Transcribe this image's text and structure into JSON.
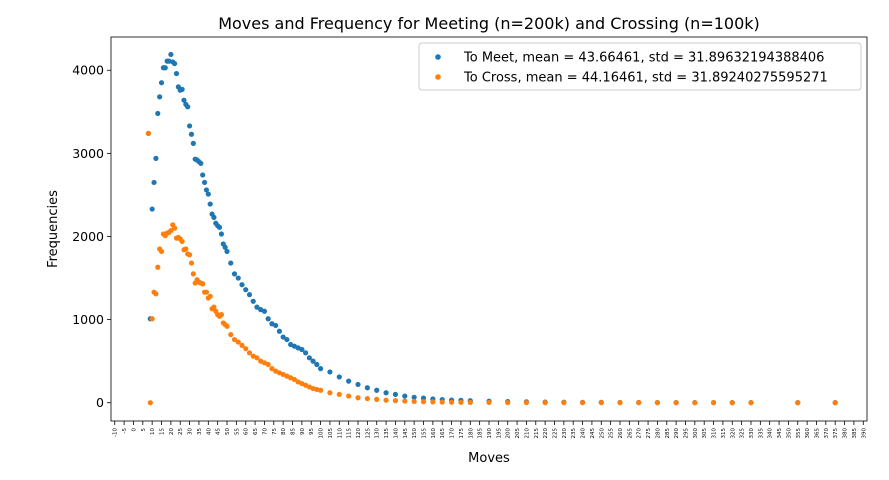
{
  "chart_data": {
    "type": "scatter",
    "title": "Moves and Frequency for Meeting (n=200k) and Crossing (n=100k)",
    "xlabel": "Moves",
    "ylabel": "Frequencies",
    "xlim": [
      -12,
      392
    ],
    "ylim": [
      -220,
      4400
    ],
    "xticks": [
      -10,
      -5,
      0,
      5,
      10,
      15,
      20,
      25,
      30,
      35,
      40,
      45,
      50,
      55,
      60,
      65,
      70,
      75,
      80,
      85,
      90,
      95,
      100,
      105,
      110,
      115,
      120,
      125,
      130,
      135,
      140,
      145,
      150,
      155,
      160,
      165,
      170,
      175,
      180,
      185,
      190,
      195,
      200,
      205,
      210,
      215,
      220,
      225,
      230,
      235,
      240,
      245,
      250,
      255,
      260,
      265,
      270,
      275,
      280,
      285,
      290,
      295,
      300,
      305,
      310,
      315,
      320,
      325,
      330,
      335,
      340,
      345,
      350,
      355,
      360,
      365,
      370,
      375,
      380,
      385,
      390
    ],
    "yticks": [
      0,
      1000,
      2000,
      3000,
      4000
    ],
    "grid": false,
    "legend_position": "top-right",
    "series": [
      {
        "name": "To Meet, mean = 43.66461, std = 31.89632194388406",
        "color": "#1f77b4",
        "x": [
          8,
          9,
          10,
          11,
          12,
          13,
          14,
          15,
          16,
          17,
          18,
          19,
          20,
          21,
          22,
          23,
          24,
          25,
          26,
          27,
          28,
          29,
          30,
          31,
          32,
          33,
          34,
          35,
          36,
          37,
          38,
          39,
          40,
          41,
          42,
          43,
          44,
          45,
          46,
          47,
          48,
          49,
          50,
          52,
          54,
          56,
          58,
          60,
          62,
          64,
          66,
          68,
          70,
          72,
          74,
          76,
          78,
          80,
          82,
          84,
          86,
          88,
          90,
          92,
          94,
          96,
          98,
          100,
          105,
          110,
          115,
          120,
          125,
          130,
          135,
          140,
          145,
          150,
          155,
          160,
          165,
          170,
          175,
          180,
          190,
          200,
          210,
          220,
          230,
          240,
          250,
          260,
          270,
          280,
          290,
          300,
          310,
          320,
          330,
          355,
          375
        ],
        "y": [
          3240,
          1010,
          2330,
          2650,
          2940,
          3480,
          3680,
          3850,
          4030,
          4030,
          4110,
          4110,
          4190,
          4100,
          4080,
          3960,
          3800,
          3760,
          3770,
          3640,
          3590,
          3560,
          3330,
          3230,
          3120,
          2930,
          2920,
          2900,
          2880,
          2740,
          2650,
          2560,
          2510,
          2390,
          2270,
          2230,
          2160,
          2130,
          2110,
          2030,
          1910,
          1870,
          1820,
          1680,
          1550,
          1500,
          1420,
          1360,
          1300,
          1220,
          1150,
          1120,
          1100,
          1010,
          950,
          930,
          860,
          790,
          760,
          700,
          680,
          660,
          640,
          600,
          540,
          500,
          460,
          410,
          370,
          310,
          260,
          220,
          180,
          150,
          120,
          100,
          80,
          65,
          55,
          45,
          38,
          32,
          28,
          24,
          18,
          14,
          10,
          8,
          6,
          5,
          4,
          3,
          3,
          2,
          2,
          2,
          2,
          1,
          1,
          1,
          1
        ]
      },
      {
        "name": "To Cross, mean = 44.16461, std = 31.89240275595271",
        "color": "#ff7f0e",
        "x": [
          8,
          9,
          10,
          11,
          12,
          13,
          14,
          15,
          16,
          17,
          18,
          19,
          20,
          21,
          22,
          23,
          24,
          25,
          26,
          27,
          28,
          29,
          30,
          31,
          32,
          33,
          34,
          35,
          36,
          37,
          38,
          39,
          40,
          41,
          42,
          43,
          44,
          45,
          46,
          47,
          48,
          49,
          50,
          52,
          54,
          56,
          58,
          60,
          62,
          64,
          66,
          68,
          70,
          72,
          74,
          76,
          78,
          80,
          82,
          84,
          86,
          88,
          90,
          92,
          94,
          96,
          98,
          100,
          105,
          110,
          115,
          120,
          125,
          130,
          135,
          140,
          145,
          150,
          155,
          160,
          165,
          170,
          175,
          180,
          190,
          200,
          210,
          220,
          230,
          240,
          250,
          260,
          270,
          280,
          290,
          300,
          310,
          320,
          330,
          355,
          375
        ],
        "y": [
          3240,
          0,
          1010,
          1330,
          1310,
          1630,
          1850,
          1820,
          2030,
          2010,
          2040,
          2050,
          2070,
          2140,
          2100,
          1980,
          1990,
          1970,
          1940,
          1840,
          1850,
          1790,
          1780,
          1680,
          1550,
          1440,
          1480,
          1450,
          1440,
          1430,
          1330,
          1330,
          1260,
          1280,
          1130,
          1150,
          1100,
          1060,
          1040,
          1060,
          960,
          940,
          920,
          820,
          760,
          730,
          690,
          650,
          600,
          560,
          540,
          500,
          480,
          460,
          410,
          380,
          360,
          340,
          320,
          300,
          280,
          250,
          230,
          210,
          190,
          170,
          160,
          150,
          120,
          100,
          80,
          60,
          50,
          40,
          30,
          25,
          20,
          16,
          12,
          10,
          8,
          6,
          5,
          4,
          3,
          2,
          2,
          1,
          1,
          1,
          1,
          1,
          1,
          0,
          0,
          0,
          0,
          0,
          0,
          0,
          0
        ]
      }
    ]
  }
}
